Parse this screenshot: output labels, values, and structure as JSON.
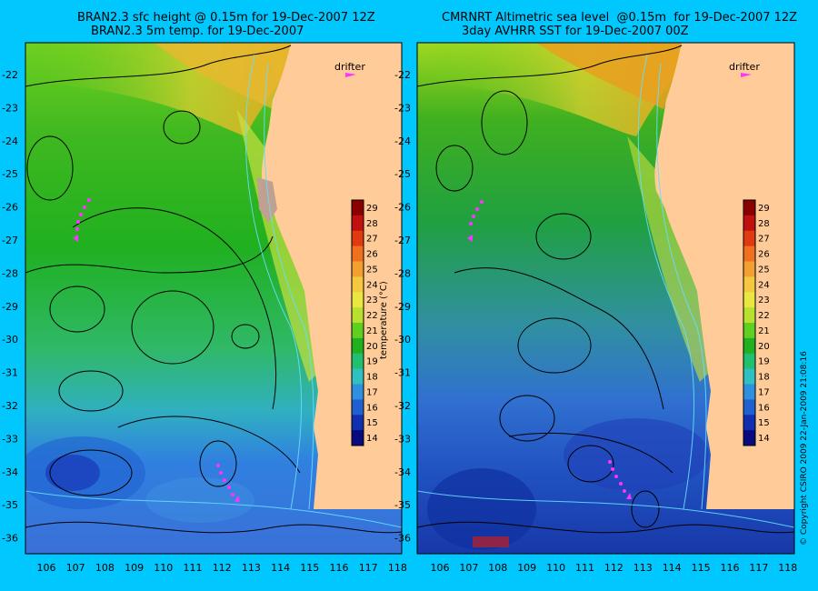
{
  "panels": [
    {
      "title_line1": "BRAN2.3 sfc height @ 0.15m for 19-Dec-2007 12Z",
      "title_line2": "BRAN2.3 5m temp. for 19-Dec-2007",
      "drifter_label": "drifter"
    },
    {
      "title_line1": "CMRNRT Altimetric sea level  @0.15m  for 19-Dec-2007 12Z",
      "title_line2": "3day AVHRR SST for 19-Dec-2007 00Z",
      "drifter_label": "drifter"
    }
  ],
  "lat_ticks": [
    "-22",
    "-23",
    "-24",
    "-25",
    "-26",
    "-27",
    "-28",
    "-29",
    "-30",
    "-31",
    "-32",
    "-33",
    "-34",
    "-35",
    "-36"
  ],
  "lon_ticks": [
    "106",
    "107",
    "108",
    "109",
    "110",
    "111",
    "112",
    "113",
    "114",
    "115",
    "116",
    "117",
    "118"
  ],
  "colorbar": {
    "label": "temperature (°C)",
    "ticks": [
      "29",
      "28",
      "27",
      "26",
      "25",
      "24",
      "23",
      "22",
      "21",
      "20",
      "19",
      "18",
      "17",
      "16",
      "15",
      "14"
    ],
    "colors": [
      "#8a0000",
      "#c01010",
      "#e03a10",
      "#f07020",
      "#f4a030",
      "#f4c840",
      "#e8e840",
      "#b8e030",
      "#60d020",
      "#20b020",
      "#20c070",
      "#30c0c0",
      "#3090e0",
      "#2060d0",
      "#1030b0",
      "#0a0a80"
    ]
  },
  "copyright": "© Copyright CSIRO 2009   22-Jan-2009 21:08:16",
  "colors": {
    "background": "#00c8ff",
    "land": "#ffcc99",
    "drifter": "#ff33ff",
    "contour": "#000000",
    "isobath": "#66ddff"
  }
}
